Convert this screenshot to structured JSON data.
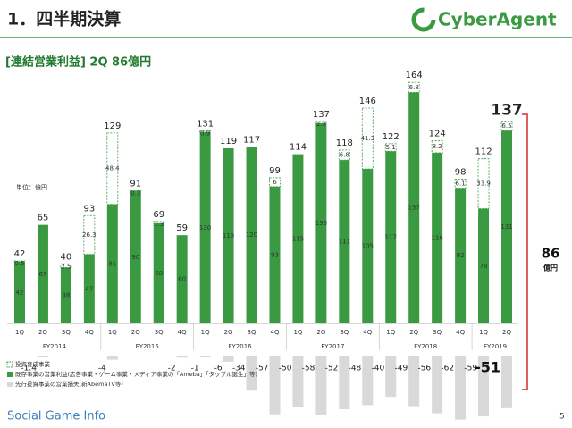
{
  "header": {
    "title": "1．四半期決算",
    "logo": "CyberAgent"
  },
  "chart_data": {
    "type": "bar",
    "subtitle": "[連結営業利益] 2Q 86億円",
    "unit_label": "単位：億円",
    "categories": [
      "1Q",
      "2Q",
      "3Q",
      "4Q",
      "1Q",
      "2Q",
      "3Q",
      "4Q",
      "1Q",
      "2Q",
      "3Q",
      "4Q",
      "1Q",
      "2Q",
      "3Q",
      "4Q",
      "1Q",
      "2Q",
      "3Q",
      "4Q",
      "1Q",
      "2Q"
    ],
    "fiscal_years": [
      "FY2014",
      "FY2015",
      "FY2016",
      "FY2017",
      "FY2018",
      "FY2019"
    ],
    "totals": [
      42,
      65,
      40,
      93,
      129,
      91,
      69,
      59,
      131,
      119,
      117,
      99,
      114,
      137,
      118,
      146,
      122,
      164,
      124,
      98,
      112,
      137
    ],
    "series": [
      {
        "name": "既存事業の営業利益(広告事業・ゲーム事業・メディア事業の「Ameba」「タップル誕生」等)",
        "color": "#3a9a42",
        "values": [
          42,
          67,
          38,
          47,
          81,
          90,
          68,
          60,
          130,
          119,
          120,
          93,
          115,
          136,
          111,
          105,
          117,
          157,
          116,
          92,
          78,
          131
        ]
      },
      {
        "name": "投資育成事業",
        "color": "#3a9a42",
        "values": [
          0.5,
          null,
          2.5,
          26.3,
          48.4,
          0.3,
          1.3,
          null,
          0.9,
          null,
          null,
          6,
          null,
          1.3,
          6.8,
          41.3,
          5.1,
          6.8,
          8.2,
          6.1,
          33.9,
          6.5
        ]
      },
      {
        "name": "先行投資事業の営業損失(新AbemaTV等)",
        "color": "#d9d9d9",
        "axis": "y2",
        "values": [
          null,
          -1.4,
          null,
          null,
          -4,
          null,
          null,
          -2,
          -1,
          -6,
          -34,
          -57,
          -50,
          -58,
          -52,
          -48,
          -40,
          -49,
          -56,
          -62,
          -59,
          -51
        ]
      }
    ],
    "ylim": [
      0,
      170
    ],
    "y2lim": [
      -65,
      0
    ],
    "bracket_value": "86",
    "bracket_unit": "億円"
  },
  "footer": {
    "source": "Social Game Info",
    "page": "5"
  }
}
